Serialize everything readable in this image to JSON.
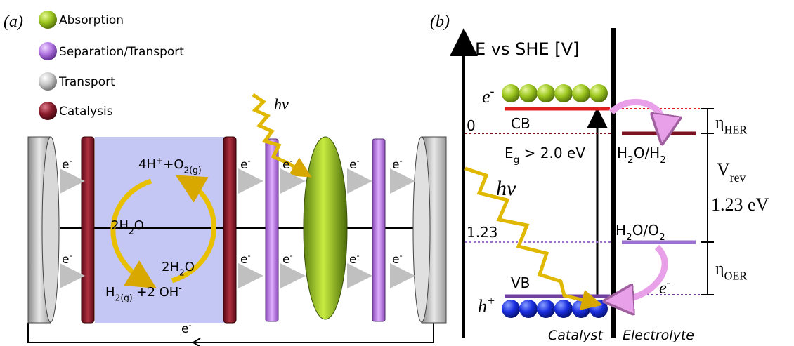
{
  "panel_a": {
    "tag": "(a)",
    "legend": [
      "Absorption",
      "Separation/Transport",
      "Transport",
      "Catalysis"
    ],
    "photon": "hv",
    "electrons": [
      [
        "e",
        "-"
      ],
      [
        "e",
        "-"
      ],
      [
        "e",
        "-"
      ],
      [
        "e",
        "-"
      ],
      [
        "e",
        "-"
      ],
      [
        "e",
        "-"
      ],
      [
        "e",
        "-"
      ],
      [
        "e",
        "-"
      ],
      [
        "e",
        "-"
      ],
      [
        "e",
        "-"
      ],
      [
        "e",
        "-"
      ]
    ],
    "reaction_top": [
      "4H",
      "+",
      "+O",
      "2(g)"
    ],
    "water_left": [
      "2H",
      "2",
      "O"
    ],
    "water_right": [
      "2H",
      "2",
      "O"
    ],
    "reaction_bottom": [
      "H",
      "2(g)",
      " +2 OH",
      "-"
    ]
  },
  "panel_b": {
    "tag": "(b)",
    "axis_title": "E vs SHE [V]",
    "electron_cb": [
      "e",
      "-"
    ],
    "cb": "CB",
    "zero": "0",
    "eg": [
      "E",
      "g",
      " > 2.0 eV"
    ],
    "her_couple": [
      "H",
      "2",
      "O/H",
      "2"
    ],
    "eta_her": [
      "η",
      "HER"
    ],
    "vrev": [
      "V",
      "rev"
    ],
    "vrev_value": "1.23 eV",
    "photon": "hv",
    "level_123": "1.23",
    "oer_couple": [
      "H",
      "2",
      "O/O",
      "2"
    ],
    "eta_oer": [
      "η",
      "OER"
    ],
    "vb": "VB",
    "hole": [
      "h",
      "+"
    ],
    "electron_vb": [
      "e",
      "-"
    ],
    "catalyst": "Catalyst",
    "electrolyte": "Electrolyte"
  }
}
